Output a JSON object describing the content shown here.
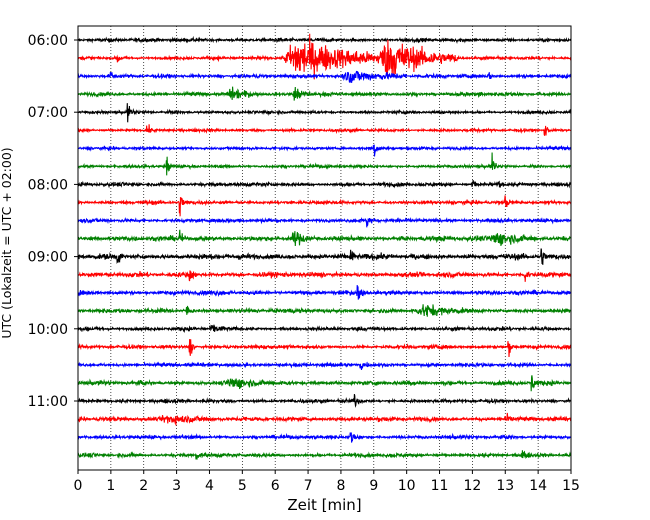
{
  "chart_data": {
    "type": "line",
    "subtype": "helicorder",
    "xlabel": "Zeit  [min]",
    "ylabel": "UTC (Lokalzeit = UTC + 02:00)",
    "xlim": [
      0,
      15
    ],
    "x_ticks": [
      0,
      1,
      2,
      3,
      4,
      5,
      6,
      7,
      8,
      9,
      10,
      11,
      12,
      13,
      14,
      15
    ],
    "x_tick_labels": [
      "0",
      "1",
      "2",
      "3",
      "4",
      "5",
      "6",
      "7",
      "8",
      "9",
      "10",
      "11",
      "12",
      "13",
      "14",
      "15"
    ],
    "y_tick_labels": [
      "06:00",
      "07:00",
      "08:00",
      "09:00",
      "10:00",
      "11:00"
    ],
    "grid": "vertical dotted",
    "line_colors": [
      "#000000",
      "#ff0000",
      "#0000ff",
      "#008000"
    ],
    "traces": [
      {
        "start": "06:00",
        "color": "#000000",
        "amplitude": 0.12,
        "events": []
      },
      {
        "start": "06:15",
        "color": "#ff0000",
        "amplitude": 0.1,
        "events": [
          [
            1.2,
            0.5
          ],
          [
            6.2,
            1.6,
            3.2
          ],
          [
            9.1,
            1.5,
            2.5
          ]
        ]
      },
      {
        "start": "06:30",
        "color": "#0000ff",
        "amplitude": 0.12,
        "events": [
          [
            1.0,
            0.3
          ],
          [
            8.0,
            0.5,
            2.0
          ],
          [
            12.5,
            0.3
          ]
        ]
      },
      {
        "start": "06:45",
        "color": "#008000",
        "amplitude": 0.12,
        "events": [
          [
            4.5,
            0.4,
            1.0
          ],
          [
            6.5,
            0.5,
            0.6
          ],
          [
            12.2,
            0.4
          ]
        ]
      },
      {
        "start": "07:00",
        "color": "#000000",
        "amplitude": 0.1,
        "events": [
          [
            1.5,
            0.7
          ]
        ]
      },
      {
        "start": "07:15",
        "color": "#ff0000",
        "amplitude": 0.1,
        "events": [
          [
            2.1,
            0.6
          ],
          [
            14.2,
            0.6
          ]
        ]
      },
      {
        "start": "07:30",
        "color": "#0000ff",
        "amplitude": 0.1,
        "events": [
          [
            9.0,
            0.8
          ]
        ]
      },
      {
        "start": "07:45",
        "color": "#008000",
        "amplitude": 0.1,
        "events": [
          [
            2.7,
            0.8
          ],
          [
            12.6,
            0.8
          ]
        ]
      },
      {
        "start": "08:00",
        "color": "#000000",
        "amplitude": 0.12,
        "events": [
          [
            12.0,
            0.5
          ],
          [
            12.8,
            0.4
          ]
        ]
      },
      {
        "start": "08:15",
        "color": "#ff0000",
        "amplitude": 0.12,
        "events": [
          [
            3.1,
            1.0
          ],
          [
            13.0,
            0.5
          ]
        ]
      },
      {
        "start": "08:30",
        "color": "#0000ff",
        "amplitude": 0.12,
        "events": [
          [
            8.8,
            0.6
          ]
        ]
      },
      {
        "start": "08:45",
        "color": "#008000",
        "amplitude": 0.16,
        "events": [
          [
            3.1,
            0.5
          ],
          [
            6.5,
            0.5,
            0.5
          ],
          [
            12.5,
            0.5,
            1.5
          ]
        ]
      },
      {
        "start": "09:00",
        "color": "#000000",
        "amplitude": 0.18,
        "events": [
          [
            1.2,
            0.6
          ],
          [
            8.3,
            0.7
          ],
          [
            14.1,
            0.8
          ]
        ]
      },
      {
        "start": "09:15",
        "color": "#ff0000",
        "amplitude": 0.16,
        "events": [
          [
            3.4,
            0.6
          ],
          [
            13.6,
            0.6
          ]
        ]
      },
      {
        "start": "09:30",
        "color": "#0000ff",
        "amplitude": 0.14,
        "events": [
          [
            8.5,
            0.7
          ]
        ]
      },
      {
        "start": "09:45",
        "color": "#008000",
        "amplitude": 0.14,
        "events": [
          [
            3.3,
            0.5
          ],
          [
            10.3,
            0.4,
            1.5
          ]
        ]
      },
      {
        "start": "10:00",
        "color": "#000000",
        "amplitude": 0.12,
        "events": [
          [
            4.0,
            0.3,
            0.5
          ]
        ]
      },
      {
        "start": "10:15",
        "color": "#ff0000",
        "amplitude": 0.12,
        "events": [
          [
            3.4,
            0.9
          ],
          [
            13.1,
            0.6
          ]
        ]
      },
      {
        "start": "10:30",
        "color": "#0000ff",
        "amplitude": 0.12,
        "events": [
          [
            8.6,
            0.6
          ]
        ]
      },
      {
        "start": "10:45",
        "color": "#008000",
        "amplitude": 0.14,
        "events": [
          [
            4.5,
            0.4,
            1.2
          ],
          [
            13.8,
            0.8
          ]
        ]
      },
      {
        "start": "11:00",
        "color": "#000000",
        "amplitude": 0.12,
        "events": [
          [
            8.4,
            0.6
          ]
        ]
      },
      {
        "start": "11:15",
        "color": "#ff0000",
        "amplitude": 0.14,
        "events": [
          [
            2.5,
            0.4,
            1.5
          ],
          [
            13.0,
            0.5
          ]
        ]
      },
      {
        "start": "11:30",
        "color": "#0000ff",
        "amplitude": 0.12,
        "events": [
          [
            8.3,
            0.6
          ]
        ]
      },
      {
        "start": "11:45",
        "color": "#008000",
        "amplitude": 0.12,
        "events": [
          [
            3.6,
            0.4
          ],
          [
            13.5,
            0.6
          ]
        ]
      }
    ]
  }
}
